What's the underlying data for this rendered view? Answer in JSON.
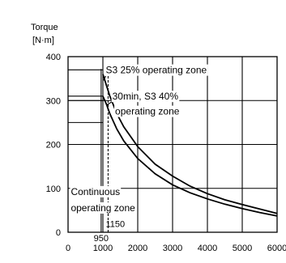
{
  "chart_data": {
    "type": "line",
    "title": "",
    "ylabel": "Torque",
    "yunit": "[N·m]",
    "xlabel": "",
    "xlim": [
      0,
      6000
    ],
    "ylim": [
      0,
      400
    ],
    "x_ticks": [
      "0",
      "1000",
      "2000",
      "3000",
      "4000",
      "5000",
      "6000"
    ],
    "y_ticks": [
      "0",
      "100",
      "200",
      "300",
      "400"
    ],
    "grid": true,
    "series": [
      {
        "name": "S3 25% operating zone",
        "x": [
          1000,
          1100,
          1200,
          1400,
          1600,
          2000,
          2500,
          3000,
          3500,
          4000,
          4500,
          5000,
          5500,
          6000
        ],
        "y": [
          360,
          335,
          310,
          270,
          240,
          195,
          155,
          128,
          105,
          88,
          74,
          63,
          53,
          43
        ]
      },
      {
        "name": "30min, S3 40% operating zone",
        "x": [
          1000,
          1100,
          1200,
          1400,
          1600,
          2000,
          2500,
          3000,
          3500,
          4000,
          4500,
          5000,
          5500,
          6000
        ],
        "y": [
          310,
          292,
          270,
          235,
          208,
          168,
          133,
          108,
          90,
          76,
          64,
          54,
          45,
          37
        ]
      }
    ],
    "reference_lines": [
      {
        "axis": "y",
        "value": 370,
        "x_end": 1000
      },
      {
        "axis": "y",
        "value": 310,
        "x_end": 1000
      },
      {
        "axis": "y",
        "value": 300,
        "x_end": 1000
      },
      {
        "axis": "y",
        "value": 250,
        "x_end": 1000
      },
      {
        "axis": "x",
        "value": 950,
        "label": "950"
      },
      {
        "axis": "x",
        "value": 1150,
        "label": "1150",
        "dashed": true
      }
    ],
    "annotations": [
      {
        "text": "S3 25% operating zone",
        "x": 1080,
        "y": 362
      },
      {
        "text": "30min, S3 40%",
        "x": 1270,
        "y": 302
      },
      {
        "text": "operating zone",
        "x": 1350,
        "y": 268
      },
      {
        "text": "Continuous",
        "x": 80,
        "y": 85
      },
      {
        "text": "operating zone",
        "x": 80,
        "y": 48
      }
    ]
  }
}
